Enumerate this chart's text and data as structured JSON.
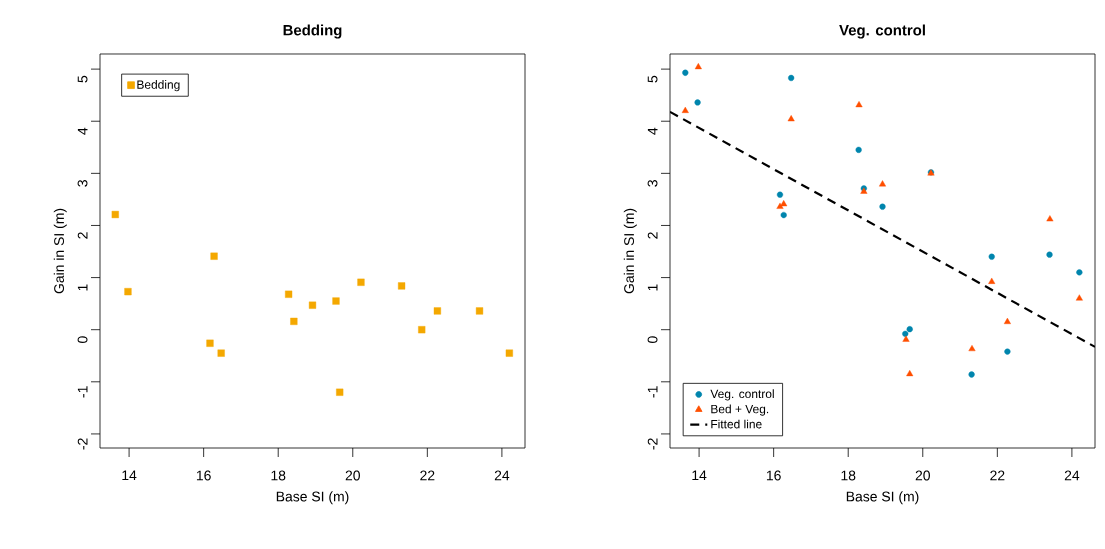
{
  "chart_data": [
    {
      "type": "scatter",
      "title": "Bedding",
      "xlabel": "Base SI (m)",
      "ylabel": "Gain in SI (m)",
      "xlim": [
        13.22,
        24.62
      ],
      "ylim": [
        -2.27,
        5.29
      ],
      "xticks": [
        14,
        16,
        18,
        20,
        22,
        24
      ],
      "yticks": [
        -2,
        -1,
        0,
        1,
        2,
        3,
        4,
        5
      ],
      "legend": "top left",
      "series": [
        {
          "name": "Bedding",
          "color": "#f4a800",
          "marker": "square",
          "x": [
            13.63,
            13.97,
            16.28,
            16.17,
            16.47,
            18.28,
            18.42,
            18.92,
            19.55,
            19.65,
            20.22,
            21.31,
            21.85,
            22.27,
            23.4,
            24.2
          ],
          "values": [
            2.21,
            0.73,
            1.41,
            -0.26,
            -0.45,
            0.68,
            0.16,
            0.47,
            0.55,
            -1.2,
            0.91,
            0.84,
            0.0,
            0.36,
            0.36,
            -0.45
          ]
        }
      ]
    },
    {
      "type": "scatter",
      "title": "Veg. control",
      "xlabel": "Base SI (m)",
      "ylabel": "Gain in SI (m)",
      "xlim": [
        13.22,
        24.62
      ],
      "ylim": [
        -2.27,
        5.29
      ],
      "xticks": [
        14,
        16,
        18,
        20,
        22,
        24
      ],
      "yticks": [
        -2,
        -1,
        0,
        1,
        2,
        3,
        4,
        5
      ],
      "legend": "bottom left",
      "series": [
        {
          "name": "Veg. control",
          "color": "#0085ad",
          "marker": "circle",
          "x": [
            13.63,
            13.96,
            16.47,
            16.17,
            16.27,
            18.28,
            18.42,
            18.92,
            20.22,
            19.53,
            19.65,
            21.31,
            21.85,
            22.27,
            23.4,
            24.2
          ],
          "values": [
            4.93,
            4.36,
            4.83,
            2.59,
            2.2,
            3.45,
            2.71,
            2.36,
            3.02,
            -0.08,
            0.01,
            -0.86,
            1.4,
            -0.42,
            1.44,
            1.1
          ]
        },
        {
          "name": "Bed + Veg.",
          "color": "#ff4f00",
          "marker": "triangle",
          "x": [
            13.63,
            13.98,
            16.47,
            16.17,
            16.27,
            18.29,
            18.42,
            18.92,
            20.22,
            19.55,
            19.65,
            21.32,
            21.85,
            22.27,
            23.41,
            24.2
          ],
          "values": [
            4.2,
            5.04,
            4.04,
            2.36,
            2.41,
            4.31,
            2.65,
            2.79,
            3.0,
            -0.19,
            -0.85,
            -0.37,
            0.92,
            0.15,
            2.12,
            0.6
          ]
        },
        {
          "name": "Fitted line",
          "type": "line",
          "color": "#000000",
          "marker": "none",
          "line_style": "dashed",
          "x": [
            13.22,
            24.62
          ],
          "values": [
            4.18,
            -0.33
          ]
        }
      ]
    }
  ]
}
